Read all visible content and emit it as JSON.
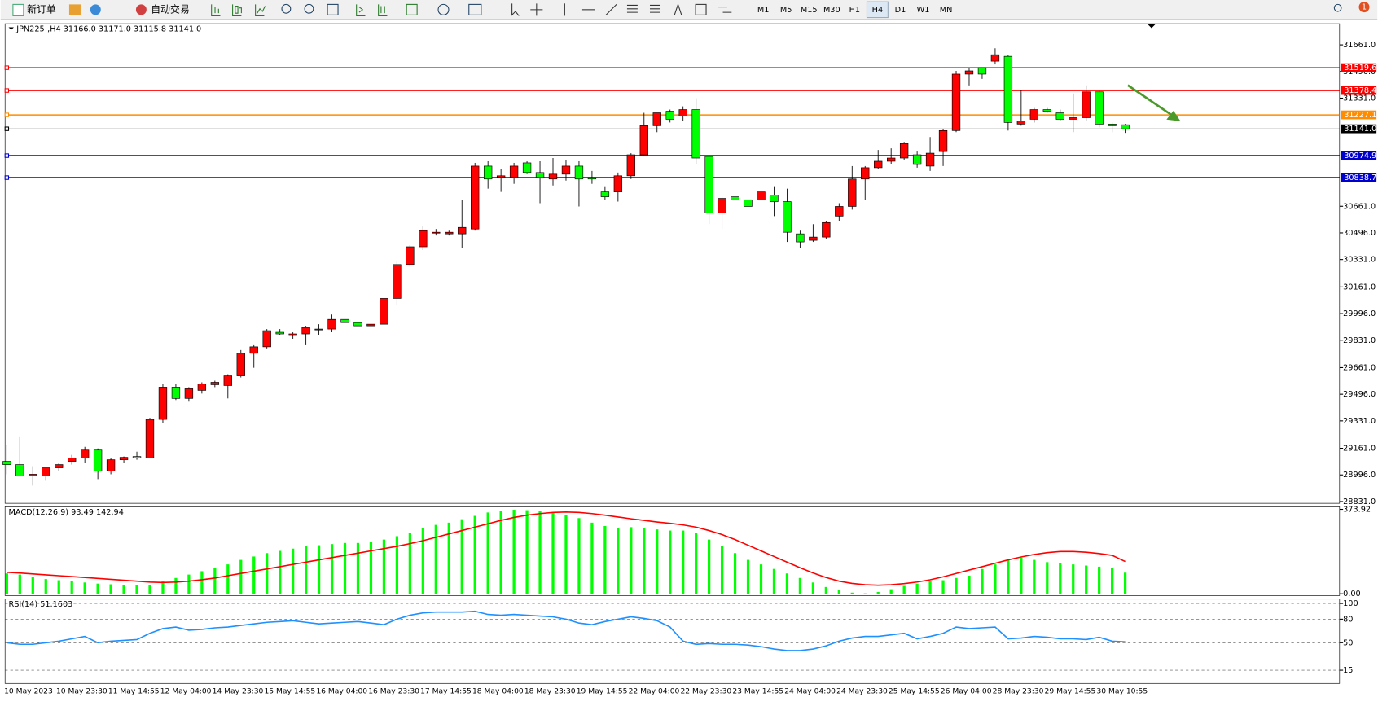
{
  "toolbar": {
    "new_order": "新订单",
    "auto_trade": "自动交易",
    "timeframes": [
      "M1",
      "M5",
      "M15",
      "M30",
      "H1",
      "H4",
      "D1",
      "W1",
      "MN"
    ],
    "active_timeframe": 5,
    "badge": "1"
  },
  "chart_data": [
    {
      "type": "candlestick",
      "title": "JPN225-,H4  31166.0 31171.0 31115.8 31141.0",
      "categories": [
        "10 May 2023",
        null,
        null,
        null,
        "10 May 23:30",
        null,
        null,
        null,
        "11 May 14:55",
        null,
        null,
        null,
        "12 May 04:00",
        null,
        null,
        null,
        "14 May 23:30",
        null,
        null,
        null,
        "15 May 14:55",
        null,
        null,
        null,
        "16 May 04:00",
        null,
        null,
        null,
        "16 May 23:30",
        null,
        null,
        null,
        "17 May 14:55",
        null,
        null,
        null,
        "18 May 04:00",
        null,
        null,
        null,
        "18 May 23:30",
        null,
        null,
        null,
        "19 May 14:55",
        null,
        null,
        null,
        "22 May 04:00",
        null,
        null,
        null,
        "22 May 23:30",
        null,
        null,
        null,
        "23 May 14:55",
        null,
        null,
        null,
        "24 May 04:00",
        null,
        null,
        null,
        "24 May 23:30",
        null,
        null,
        null,
        "25 May 14:55",
        null,
        null,
        null,
        "26 May 04:00",
        null,
        null,
        null,
        "28 May 23:30",
        null,
        null,
        null,
        "29 May 14:55",
        null,
        null,
        null,
        "30 May 10:55",
        null,
        null
      ],
      "open": [
        29080,
        29060,
        28990,
        28990,
        29040,
        29080,
        29100,
        29150,
        29020,
        29090,
        29110,
        29100,
        29340,
        29540,
        29470,
        29520,
        29555,
        29550,
        29610,
        29750,
        29790,
        29880,
        29860,
        29870,
        29900,
        29900,
        29960,
        29940,
        29920,
        29930,
        30090,
        30300,
        30410,
        30500,
        30490,
        30490,
        30520,
        30910,
        30840,
        30840,
        30930,
        30870,
        30830,
        30860,
        30910,
        30840,
        30750,
        30750,
        30850,
        30980,
        31160,
        31250,
        31220,
        31260,
        30970,
        30620,
        30720,
        30700,
        30700,
        30730,
        30690,
        30490,
        30450,
        30470,
        30600,
        30660,
        30830,
        30900,
        30940,
        30960,
        30980,
        30910,
        31000,
        31130,
        31480,
        31520,
        31560,
        31590,
        31170,
        31200,
        31260,
        31240,
        31200,
        31210,
        31370,
        31170,
        31166
      ],
      "high": [
        29180,
        29230,
        29050,
        29040,
        29070,
        29120,
        29170,
        29160,
        29100,
        29110,
        29140,
        29350,
        29560,
        29560,
        29540,
        29570,
        29580,
        29620,
        29770,
        29800,
        29900,
        29900,
        29880,
        29920,
        29930,
        29990,
        29990,
        29960,
        29950,
        30120,
        30320,
        30420,
        30540,
        30520,
        30510,
        30700,
        30930,
        30940,
        30890,
        30930,
        30940,
        30940,
        30960,
        30950,
        30940,
        30880,
        30780,
        30870,
        30990,
        31240,
        31240,
        31260,
        31280,
        31330,
        30970,
        30720,
        30840,
        30750,
        30770,
        30780,
        30770,
        30510,
        30550,
        30570,
        30680,
        30910,
        30910,
        31010,
        31020,
        31060,
        31000,
        31090,
        31140,
        31500,
        31520,
        31520,
        31640,
        31600,
        31380,
        31270,
        31270,
        31260,
        31360,
        31410,
        31380,
        31180,
        31171
      ],
      "low": [
        29000,
        28990,
        28930,
        28960,
        29020,
        29060,
        29070,
        28970,
        29000,
        29070,
        29090,
        29100,
        29320,
        29460,
        29450,
        29500,
        29540,
        29470,
        29600,
        29660,
        29780,
        29860,
        29840,
        29800,
        29860,
        29880,
        29920,
        29880,
        29910,
        29920,
        30050,
        30290,
        30390,
        30480,
        30480,
        30400,
        30510,
        30770,
        30750,
        30800,
        30860,
        30680,
        30790,
        30820,
        30660,
        30800,
        30700,
        30690,
        30830,
        30970,
        31120,
        31180,
        31190,
        30920,
        30550,
        30520,
        30650,
        30640,
        30690,
        30600,
        30440,
        30400,
        30440,
        30460,
        30570,
        30640,
        30700,
        30890,
        30920,
        30950,
        30900,
        30880,
        30910,
        31120,
        31410,
        31450,
        31540,
        31130,
        31160,
        31180,
        31240,
        31190,
        31120,
        31190,
        31150,
        31120,
        31115.8
      ],
      "close": [
        29060,
        28990,
        29000,
        29040,
        29060,
        29100,
        29150,
        29020,
        29090,
        29105,
        29100,
        29340,
        29540,
        29470,
        29530,
        29560,
        29570,
        29610,
        29750,
        29790,
        29890,
        29870,
        29870,
        29910,
        29900,
        29960,
        29940,
        29920,
        29930,
        30090,
        30300,
        30410,
        30510,
        30500,
        30500,
        30530,
        30910,
        30830,
        30850,
        30910,
        30870,
        30840,
        30860,
        30910,
        30830,
        30830,
        30720,
        30850,
        30980,
        31160,
        31240,
        31200,
        31260,
        30960,
        30620,
        30710,
        30700,
        30660,
        30750,
        30690,
        30500,
        30440,
        30470,
        30560,
        30660,
        30830,
        30900,
        30940,
        30960,
        31050,
        30920,
        30990,
        31130,
        31480,
        31500,
        31480,
        31600,
        31180,
        31190,
        31260,
        31250,
        31200,
        31210,
        31370,
        31170,
        31160,
        31141
      ],
      "up_color": "#ff0000",
      "down_color": "#00ff00",
      "ylim": [
        28820,
        31792
      ],
      "yticks": [
        {
          "value": 31661,
          "label": "31661.0"
        },
        {
          "value": 31496,
          "label": "31496.0"
        },
        {
          "value": 31331,
          "label": "31331.0"
        },
        {
          "value": 30661,
          "label": "30661.0"
        },
        {
          "value": 30496,
          "label": "30496.0"
        },
        {
          "value": 30331,
          "label": "30331.0"
        },
        {
          "value": 30161,
          "label": "30161.0"
        },
        {
          "value": 29996,
          "label": "29996.0"
        },
        {
          "value": 29831,
          "label": "29831.0"
        },
        {
          "value": 29661,
          "label": "29661.0"
        },
        {
          "value": 29496,
          "label": "29496.0"
        },
        {
          "value": 29331,
          "label": "29331.0"
        },
        {
          "value": 29161,
          "label": "29161.0"
        },
        {
          "value": 28996,
          "label": "28996.0"
        },
        {
          "value": 28831,
          "label": "28831.0"
        }
      ],
      "levels": [
        {
          "value": 31519.6,
          "label": "31519.6",
          "color": "#ff0000"
        },
        {
          "value": 31378.4,
          "label": "31378.4",
          "color": "#ff0000"
        },
        {
          "value": 31227.1,
          "label": "31227.1",
          "color": "#ff8c00"
        },
        {
          "value": 31141.0,
          "label": "31141.0",
          "color": "#000000"
        },
        {
          "value": 30974.9,
          "label": "30974.9",
          "color": "#0000cd"
        },
        {
          "value": 30838.7,
          "label": "30838.7",
          "color": "#0000cd"
        }
      ]
    },
    {
      "type": "macd",
      "title": "MACD(12,26,9) 93.49 142.94",
      "series": [
        {
          "name": "MACD",
          "color": "#00ff00",
          "values": [
            90,
            85,
            75,
            65,
            60,
            55,
            50,
            45,
            42,
            40,
            38,
            40,
            55,
            70,
            85,
            100,
            115,
            130,
            150,
            165,
            180,
            190,
            200,
            210,
            215,
            220,
            225,
            225,
            228,
            240,
            255,
            270,
            290,
            305,
            315,
            330,
            345,
            360,
            368,
            372,
            370,
            365,
            360,
            350,
            335,
            315,
            300,
            290,
            295,
            290,
            285,
            280,
            280,
            270,
            240,
            210,
            180,
            150,
            130,
            110,
            90,
            70,
            50,
            30,
            15,
            5,
            2,
            8,
            20,
            35,
            45,
            55,
            60,
            70,
            80,
            110,
            130,
            150,
            160,
            150,
            140,
            135,
            130,
            125,
            120,
            115,
            93.49
          ]
        },
        {
          "name": "Signal",
          "color": "#ff0000",
          "values": [
            95,
            92,
            88,
            84,
            80,
            76,
            72,
            68,
            64,
            60,
            56,
            52,
            50,
            52,
            56,
            62,
            70,
            80,
            90,
            100,
            110,
            120,
            130,
            140,
            150,
            160,
            170,
            180,
            190,
            200,
            210,
            222,
            235,
            250,
            265,
            280,
            295,
            310,
            325,
            338,
            348,
            355,
            360,
            362,
            360,
            355,
            348,
            340,
            332,
            325,
            318,
            312,
            305,
            295,
            280,
            262,
            240,
            215,
            190,
            165,
            140,
            115,
            92,
            72,
            56,
            46,
            40,
            38,
            40,
            45,
            52,
            62,
            75,
            90,
            105,
            120,
            135,
            150,
            163,
            174,
            182,
            187,
            187,
            184,
            178,
            170,
            142.94
          ]
        }
      ],
      "ylim": [
        -8,
        385
      ],
      "yticks": [
        373.92,
        {
          "value": 0,
          "label": "0.00"
        }
      ]
    },
    {
      "type": "rsi",
      "title": "RSI(14) 51.1603",
      "series": [
        {
          "name": "RSI",
          "color": "#1e90ff",
          "values": [
            50,
            48,
            48,
            50,
            52,
            55,
            58,
            50,
            52,
            53,
            54,
            62,
            68,
            70,
            66,
            67,
            69,
            70,
            72,
            74,
            76,
            77,
            78,
            76,
            74,
            75,
            76,
            77,
            75,
            73,
            80,
            85,
            88,
            89,
            89,
            89,
            90,
            86,
            85,
            86,
            85,
            84,
            83,
            80,
            75,
            73,
            77,
            80,
            83,
            81,
            78,
            70,
            52,
            48,
            49,
            48,
            48,
            47,
            45,
            42,
            40,
            40,
            42,
            46,
            52,
            56,
            58,
            58,
            60,
            62,
            55,
            58,
            62,
            70,
            68,
            69,
            70,
            55,
            56,
            58,
            57,
            55,
            55,
            54,
            57,
            52,
            51.1603
          ]
        }
      ],
      "ylim": [
        -1.8,
        105.6
      ],
      "yticks": [
        100,
        80,
        50,
        15
      ],
      "grid": "dashed"
    }
  ]
}
